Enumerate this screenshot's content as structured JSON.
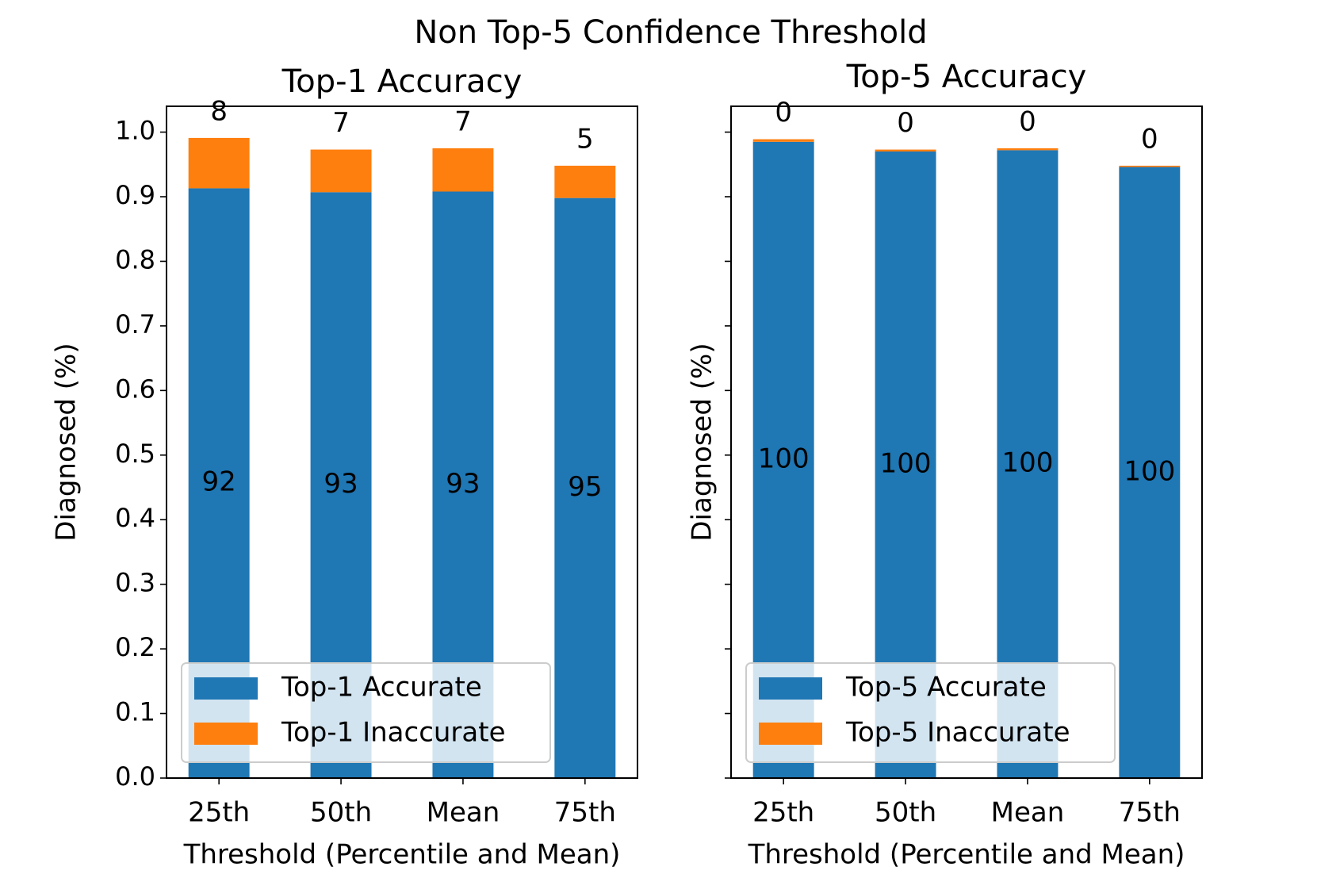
{
  "title": "Non Top-5 Confidence Threshold",
  "chart_data": [
    {
      "type": "bar",
      "stacked": true,
      "title": "Top-1 Accuracy",
      "xlabel": "Threshold (Percentile and Mean)",
      "ylabel": "Diagnosed (%)",
      "categories": [
        "25th",
        "50th",
        "Mean",
        "75th"
      ],
      "series": [
        {
          "name": "Top-1 Accurate",
          "color": "#1f77b4",
          "values": [
            0.913,
            0.907,
            0.908,
            0.898
          ],
          "labels": [
            "92",
            "93",
            "93",
            "95"
          ]
        },
        {
          "name": "Top-1 Inaccurate",
          "color": "#ff7f0e",
          "values": [
            0.078,
            0.066,
            0.067,
            0.05
          ],
          "labels": [
            "8",
            "7",
            "7",
            "5"
          ]
        }
      ],
      "ylim": [
        0,
        1.04
      ],
      "yticks": [
        {
          "value": 0,
          "label": "0.0"
        },
        0.1,
        0.2,
        0.3,
        0.4,
        0.5,
        0.6,
        0.7,
        0.8,
        0.9,
        {
          "value": 1,
          "label": "1.0"
        }
      ],
      "show_ytick_labels": true,
      "legend": "lower left"
    },
    {
      "type": "bar",
      "stacked": true,
      "title": "Top-5 Accuracy",
      "xlabel": "Threshold (Percentile and Mean)",
      "ylabel": "Diagnosed (%)",
      "categories": [
        "25th",
        "50th",
        "Mean",
        "75th"
      ],
      "series": [
        {
          "name": "Top-5 Accurate",
          "color": "#1f77b4",
          "values": [
            0.985,
            0.97,
            0.972,
            0.946
          ],
          "labels": [
            "100",
            "100",
            "100",
            "100"
          ]
        },
        {
          "name": "Top-5 Inaccurate",
          "color": "#ff7f0e",
          "values": [
            0.004,
            0.003,
            0.003,
            0.002
          ],
          "labels": [
            "0",
            "0",
            "0",
            "0"
          ]
        }
      ],
      "ylim": [
        0,
        1.04
      ],
      "yticks": [
        0,
        0.1,
        0.2,
        0.3,
        0.4,
        0.5,
        0.6,
        0.7,
        0.8,
        0.9,
        1
      ],
      "show_ytick_labels": false,
      "legend": "lower left"
    }
  ]
}
